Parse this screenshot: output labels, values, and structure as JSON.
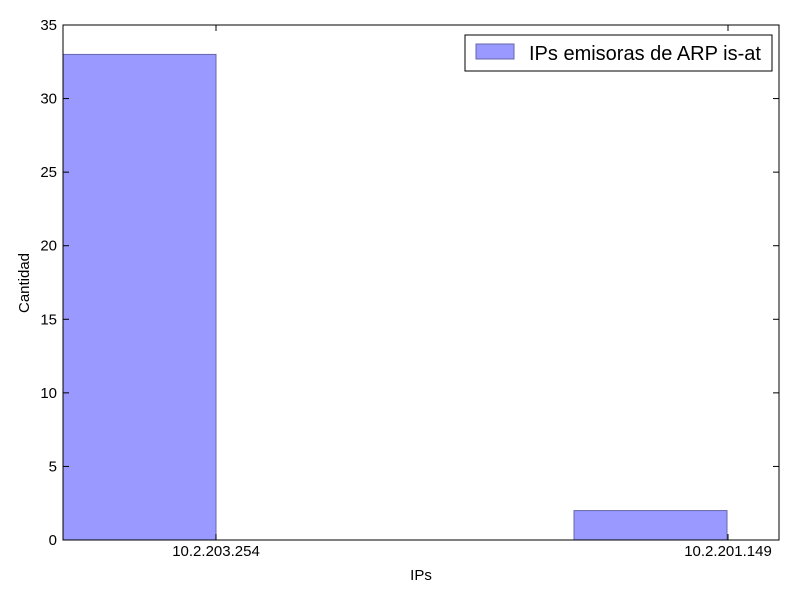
{
  "chart_data": {
    "type": "bar",
    "categories": [
      "10.2.203.254",
      "10.2.201.149"
    ],
    "series": [
      {
        "name": "IPs emisoras de ARP is-at",
        "values": [
          33,
          2
        ],
        "color": "#9999ff",
        "edge_color": "#6666aa"
      }
    ],
    "xlabel": "IPs",
    "ylabel": "Cantidad",
    "ylim": [
      0,
      35
    ],
    "yticks": [
      "0",
      "5",
      "10",
      "15",
      "20",
      "25",
      "30",
      "35"
    ],
    "grid": false,
    "legend_position": "top-right"
  }
}
